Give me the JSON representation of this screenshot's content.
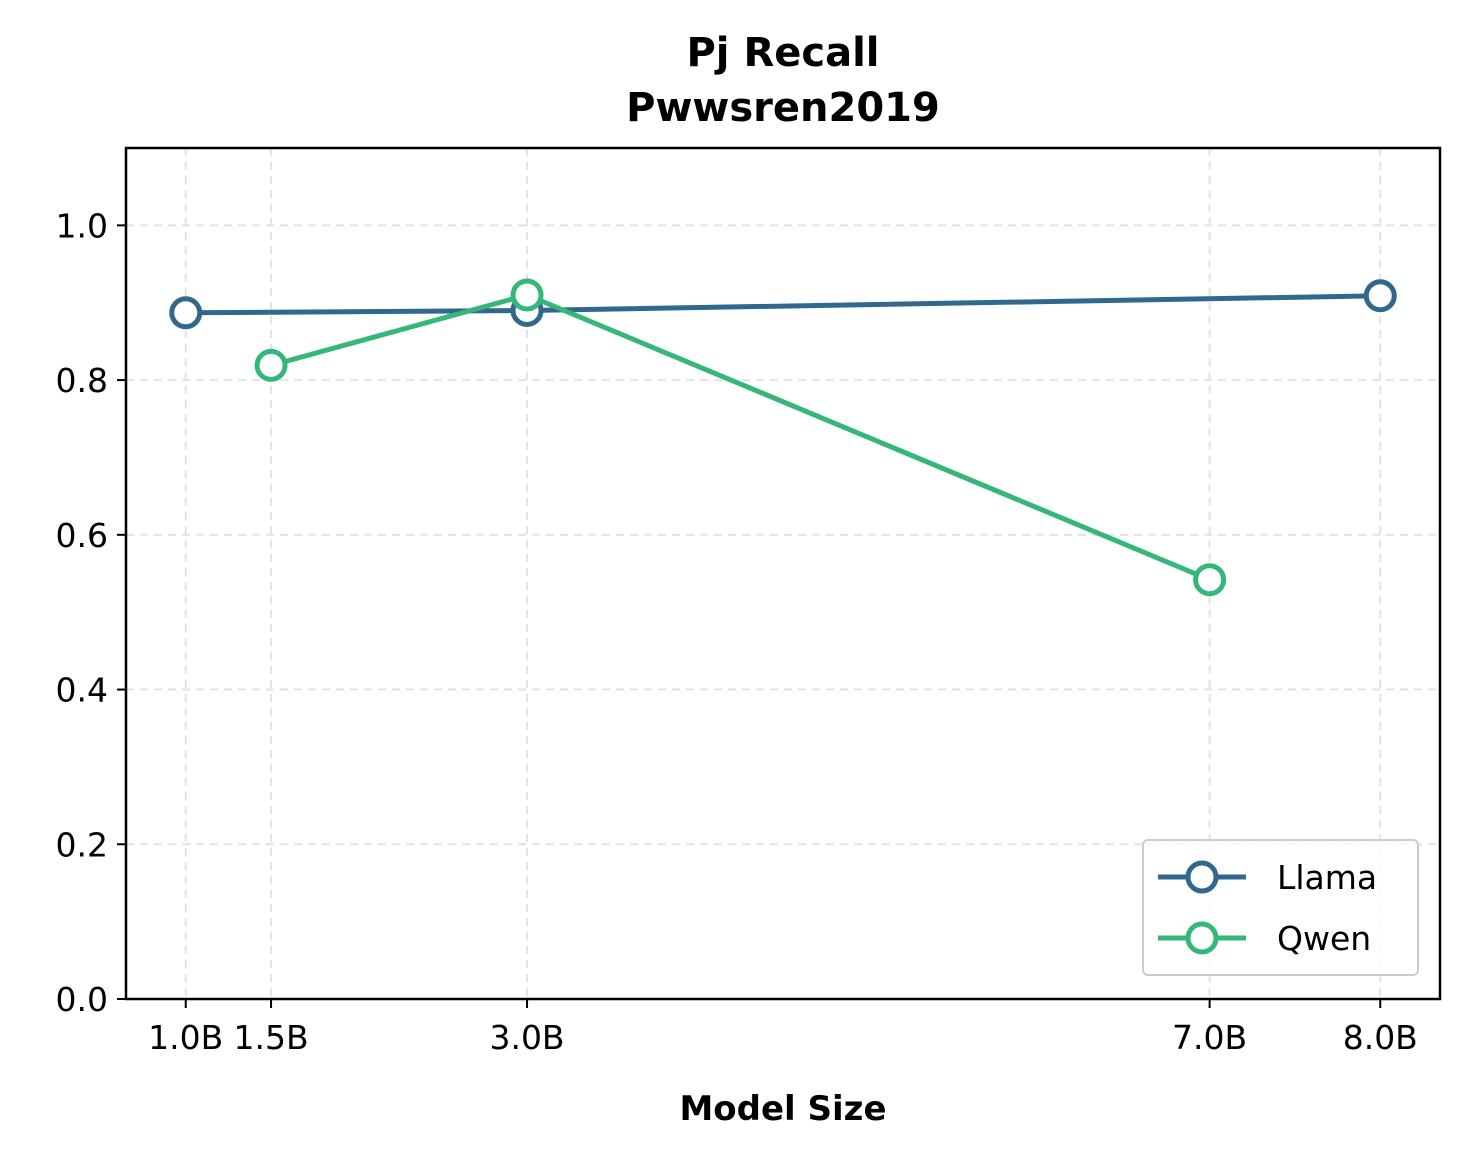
{
  "chart_data": {
    "type": "line",
    "title": "Pj Recall",
    "subtitle": "Pwwsren2019",
    "xlabel": "Model Size",
    "ylabel": "",
    "x": [
      1.0,
      1.5,
      3.0,
      7.0,
      8.0
    ],
    "x_tick_labels": [
      "1.0B",
      "1.5B",
      "3.0B",
      "7.0B",
      "8.0B"
    ],
    "y_ticks": [
      0.0,
      0.2,
      0.4,
      0.6,
      0.8,
      1.0
    ],
    "y_tick_labels": [
      "0.0",
      "0.2",
      "0.4",
      "0.6",
      "0.8",
      "1.0"
    ],
    "ylim": [
      0.0,
      1.1
    ],
    "xlim": [
      0.65,
      8.35
    ],
    "grid": true,
    "legend_position": "lower-right",
    "series": [
      {
        "name": "Llama",
        "color": "#31688e",
        "x": [
          1.0,
          3.0,
          8.0
        ],
        "values": [
          0.887,
          0.89,
          0.909
        ]
      },
      {
        "name": "Qwen",
        "color": "#35b779",
        "x": [
          1.5,
          3.0,
          7.0
        ],
        "values": [
          0.819,
          0.91,
          0.542
        ]
      }
    ]
  }
}
